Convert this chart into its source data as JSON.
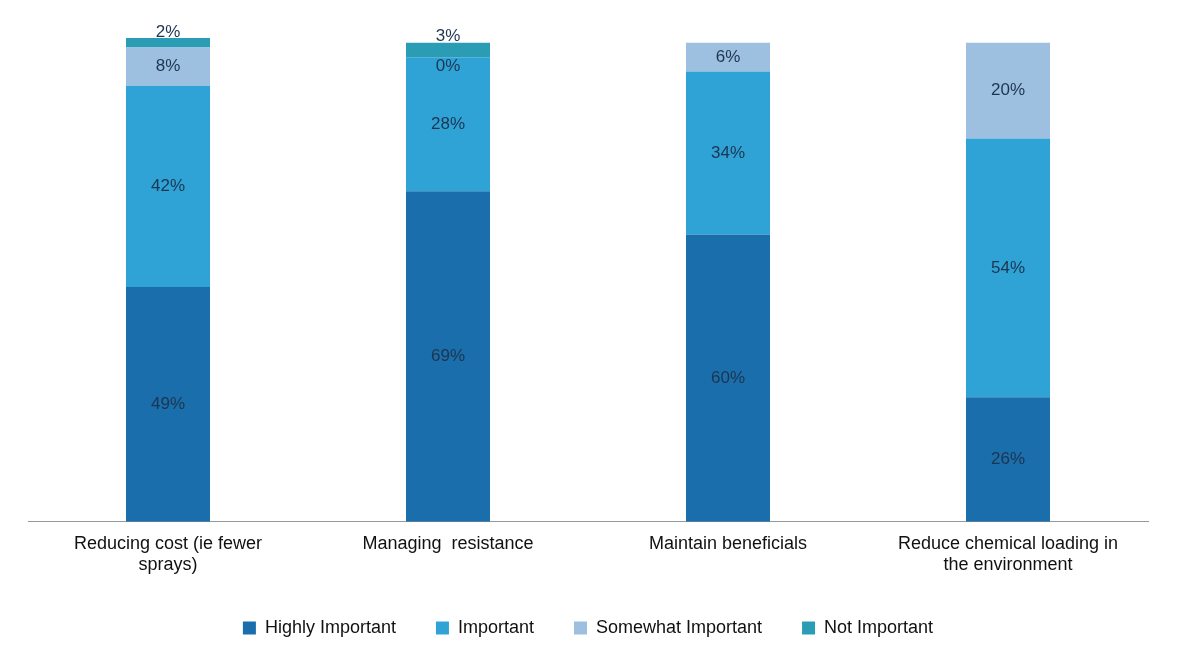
{
  "chart_data": {
    "type": "bar",
    "stacked": true,
    "categories": [
      "Reducing cost (ie fewer sprays)",
      "Managing  resistance",
      "Maintain beneficials",
      "Reduce chemical loading in the environment"
    ],
    "series": [
      {
        "name": "Highly Important",
        "color": "#1a6eab",
        "values": [
          49,
          69,
          60,
          26
        ],
        "value_labels": [
          "49%",
          "69%",
          "60%",
          "26%"
        ]
      },
      {
        "name": "Important",
        "color": "#2fa3d6",
        "values": [
          42,
          28,
          34,
          54
        ],
        "value_labels": [
          "42%",
          "28%",
          "34%",
          "54%"
        ]
      },
      {
        "name": "Somewhat Important",
        "color": "#9dbfe0",
        "values": [
          8,
          0,
          6,
          20
        ],
        "value_labels": [
          "8%",
          "0%",
          "6%",
          "20%"
        ]
      },
      {
        "name": "Not Important",
        "color": "#2a9db5",
        "values": [
          2,
          3,
          null,
          null
        ],
        "value_labels": [
          "2%",
          "3%",
          null,
          null
        ]
      }
    ],
    "legend": "bottom",
    "grid": false
  }
}
